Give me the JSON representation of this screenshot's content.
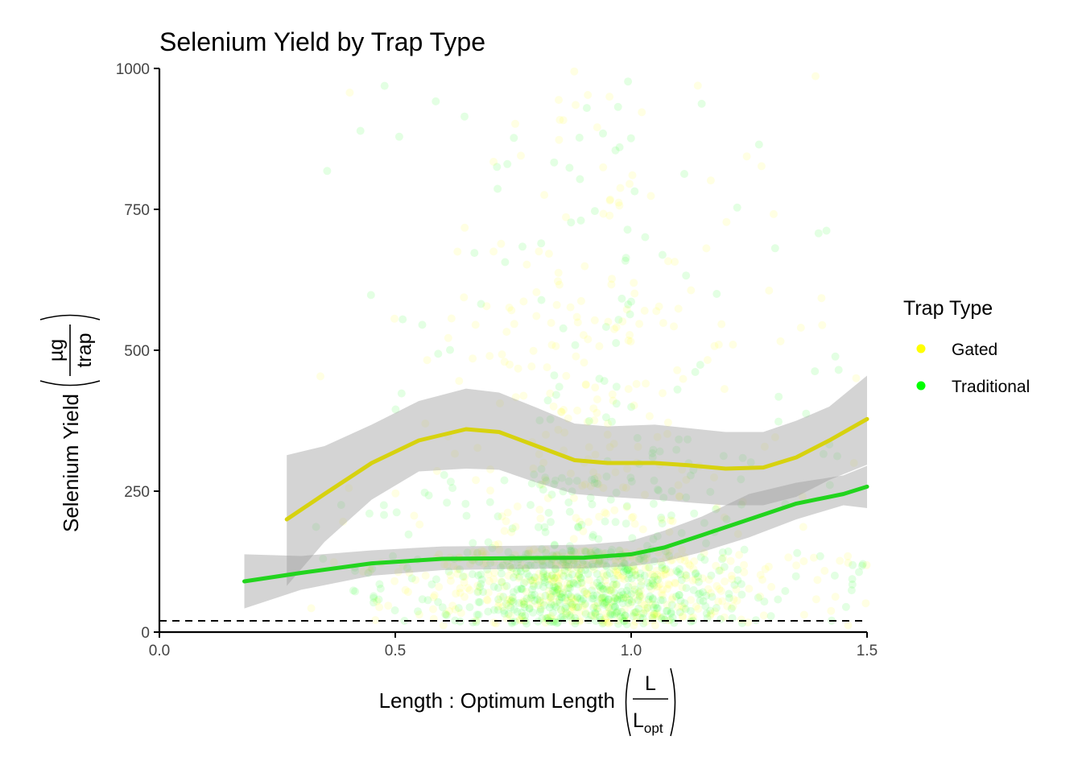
{
  "chart_data": {
    "type": "scatter",
    "title": "Selenium Yield by Trap Type",
    "xlabel_main": "Length : Optimum Length",
    "xlabel_frac": {
      "numerator": "L",
      "denominator": "L",
      "denominator_subscript": "opt"
    },
    "ylabel_main": "Selenium Yield",
    "ylabel_frac": {
      "numerator": "µg",
      "denominator": "trap"
    },
    "xlim": [
      0,
      1.5
    ],
    "ylim": [
      0,
      1000
    ],
    "x_ticks": [
      "0.0",
      "0.5",
      "1.0",
      "1.5"
    ],
    "x_tick_values": [
      0,
      0.5,
      1.0,
      1.5
    ],
    "y_ticks": [
      "0",
      "250",
      "500",
      "750",
      "1000"
    ],
    "y_tick_values": [
      0,
      250,
      500,
      750,
      1000
    ],
    "reference_line": {
      "y": 20,
      "style": "dashed",
      "color": "#000000"
    },
    "legend": {
      "title": "Trap Type",
      "placement": "right",
      "entries": [
        {
          "label": "Gated",
          "color": "#FFFF00"
        },
        {
          "label": "Traditional",
          "color": "#00FF00"
        }
      ]
    },
    "series": [
      {
        "name": "Gated",
        "point_color": "#FFFF00",
        "line_color": "#D7D20F",
        "smooth": {
          "x": [
            0.27,
            0.35,
            0.45,
            0.55,
            0.65,
            0.72,
            0.8,
            0.88,
            0.95,
            1.05,
            1.12,
            1.2,
            1.28,
            1.35,
            1.42,
            1.5
          ],
          "y": [
            200,
            245,
            300,
            340,
            360,
            355,
            330,
            305,
            300,
            300,
            296,
            290,
            292,
            310,
            340,
            378
          ],
          "lower": [
            82,
            160,
            235,
            285,
            290,
            288,
            265,
            245,
            240,
            235,
            230,
            225,
            225,
            240,
            270,
            297
          ],
          "upper": [
            314,
            330,
            368,
            410,
            432,
            425,
            398,
            370,
            365,
            368,
            362,
            355,
            355,
            375,
            400,
            455
          ]
        }
      },
      {
        "name": "Traditional",
        "point_color": "#00FF00",
        "line_color": "#22D41E",
        "smooth": {
          "x": [
            0.18,
            0.3,
            0.45,
            0.6,
            0.75,
            0.9,
            1.0,
            1.07,
            1.15,
            1.25,
            1.35,
            1.45,
            1.5
          ],
          "y": [
            90,
            105,
            122,
            130,
            131,
            132,
            138,
            150,
            172,
            200,
            228,
            245,
            258
          ],
          "lower": [
            42,
            75,
            100,
            110,
            112,
            113,
            117,
            125,
            142,
            168,
            200,
            225,
            220
          ],
          "upper": [
            138,
            135,
            145,
            152,
            153,
            155,
            162,
            180,
            205,
            245,
            265,
            278,
            295
          ]
        }
      }
    ]
  }
}
